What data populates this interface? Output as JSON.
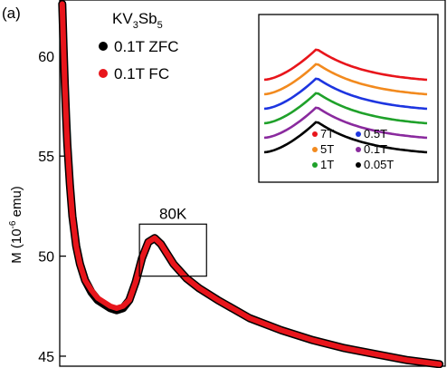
{
  "panel_label": "(a)",
  "colors": {
    "zfc": "#000000",
    "fc": "#e8151b",
    "frame": "#000000"
  },
  "chart_data": [
    {
      "type": "scatter",
      "title": "",
      "ylabel_main": "M (10",
      "ylabel_exp": "-6",
      "ylabel_unit": " emu)",
      "xlabel": "",
      "ylim": [
        44.5,
        62.8
      ],
      "xlim": [
        0,
        300
      ],
      "y_ticks": [
        45,
        50,
        55,
        60
      ],
      "y_tick_labels": [
        "45",
        "50",
        "55",
        "60"
      ],
      "legend": {
        "placement": "top-left",
        "title_base": "KV",
        "title_sub1": "3",
        "title_mid": "Sb",
        "title_sub2": "5",
        "entries": [
          "0.1T ZFC",
          "0.1T FC"
        ]
      },
      "annotation": {
        "text": "80K",
        "box_x": [
          63,
          116
        ],
        "box_y": [
          49.0,
          51.6
        ]
      },
      "series": [
        {
          "name": "0.1T ZFC",
          "x": [
            2,
            3,
            4,
            5,
            6,
            8,
            10,
            13,
            16,
            20,
            25,
            30,
            35,
            40,
            45,
            50,
            55,
            60,
            65,
            70,
            75,
            80,
            85,
            90,
            100,
            110,
            125,
            150,
            175,
            200,
            225,
            250,
            275,
            300
          ],
          "y": [
            62.6,
            60.5,
            58.6,
            57.0,
            55.6,
            53.6,
            52.0,
            50.5,
            49.6,
            48.8,
            48.2,
            47.8,
            47.6,
            47.4,
            47.3,
            47.4,
            47.8,
            48.7,
            49.9,
            50.7,
            50.9,
            50.6,
            50.1,
            49.6,
            48.9,
            48.4,
            47.8,
            46.9,
            46.3,
            45.8,
            45.4,
            45.1,
            44.8,
            44.6
          ]
        },
        {
          "name": "0.1T FC",
          "x": [
            2,
            3,
            4,
            5,
            6,
            8,
            10,
            13,
            16,
            20,
            25,
            30,
            35,
            40,
            45,
            50,
            55,
            60,
            65,
            70,
            75,
            80,
            85,
            90,
            100,
            110,
            125,
            150,
            175,
            200,
            225,
            250,
            275,
            300
          ],
          "y": [
            62.6,
            60.5,
            58.6,
            57.0,
            55.6,
            53.6,
            52.0,
            50.5,
            49.6,
            48.8,
            48.3,
            47.9,
            47.7,
            47.5,
            47.4,
            47.5,
            47.8,
            48.7,
            49.9,
            50.7,
            50.9,
            50.6,
            50.1,
            49.6,
            48.9,
            48.4,
            47.8,
            46.9,
            46.3,
            45.8,
            45.4,
            45.1,
            44.8,
            44.6
          ]
        }
      ]
    },
    {
      "type": "line",
      "title": "",
      "xlabel": "",
      "ylabel": "",
      "legend": {
        "placement": "bottom-left",
        "columns": 2
      },
      "series": [
        {
          "name": "7T",
          "color": "#e8151b",
          "offset": 5
        },
        {
          "name": "5T",
          "color": "#f28a1e",
          "offset": 4
        },
        {
          "name": "1T",
          "color": "#1fa12a",
          "offset": 2
        },
        {
          "name": "0.5T",
          "color": "#1d35e0",
          "offset": 3
        },
        {
          "name": "0.1T",
          "color": "#8a2a9e",
          "offset": 1
        },
        {
          "name": "0.05T",
          "color": "#000000",
          "offset": 0
        }
      ]
    }
  ]
}
